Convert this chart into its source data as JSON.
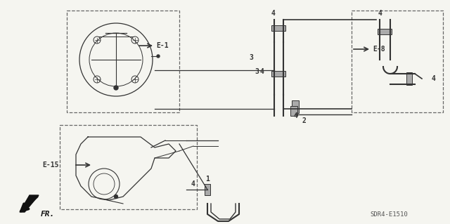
{
  "bg_color": "#f5f5f0",
  "line_color": "#333333",
  "title_code": "SDR4-E1510",
  "labels": {
    "E1": "E-1",
    "E8": "E-8",
    "E15": "E-15",
    "FR": "FR.",
    "part1": "1",
    "part2": "2",
    "part3": "3",
    "part4": "4"
  },
  "figsize": [
    6.4,
    3.19
  ],
  "dpi": 100
}
